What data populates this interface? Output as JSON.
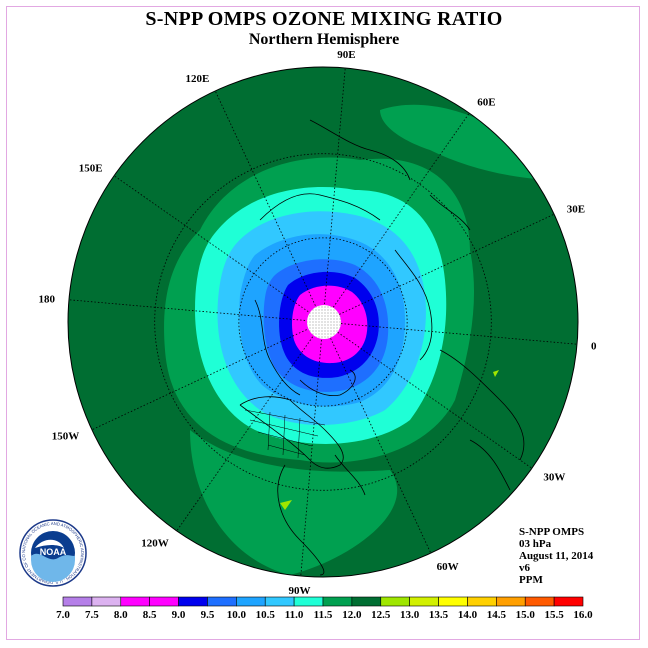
{
  "title": "S-NPP OMPS OZONE MIXING RATIO",
  "subtitle": "Northern Hemisphere",
  "longitude_labels": [
    "90E",
    "60E",
    "30E",
    "0",
    "30W",
    "60W",
    "90W",
    "120W",
    "150W",
    "180",
    "150E",
    "120E"
  ],
  "info": {
    "instrument": "S-NPP OMPS",
    "level": "03 hPa",
    "date": "August 11, 2014",
    "version": "v6",
    "units": "PPM"
  },
  "logo": {
    "text": "NOAA",
    "ring_text": "NATIONAL OCEANIC AND ATMOSPHERIC ADMINISTRATION · U.S. DEPARTMENT OF COMMERCE"
  },
  "colorbar": {
    "labels": [
      "7.0",
      "7.5",
      "8.0",
      "8.5",
      "9.0",
      "9.5",
      "10.0",
      "10.5",
      "11.0",
      "11.5",
      "12.0",
      "12.5",
      "13.0",
      "13.5",
      "14.0",
      "14.5",
      "15.0",
      "15.5",
      "16.0"
    ],
    "colors": [
      "#b57fe8",
      "#dcb2f0",
      "#ff00ff",
      "#ff00ff",
      "#0000ee",
      "#1e6fff",
      "#1ea4ff",
      "#31c8ff",
      "#1fffd6",
      "#00a050",
      "#006e32",
      "#9fe600",
      "#d2f000",
      "#ffff00",
      "#ffd000",
      "#ff9f00",
      "#ff5a00",
      "#ff0000",
      "#a0522d"
    ]
  },
  "map_colors": {
    "background": "#ffffff",
    "dark_green": "#006e32",
    "green": "#00a050",
    "cyan": "#1fffd6",
    "light_blue": "#31c8ff",
    "mid_blue": "#1ea4ff",
    "blue": "#1e6fff",
    "navy": "#0000ee",
    "magenta": "#ff00ff",
    "pole": "#ffffff",
    "lime_spot": "#9fe600"
  }
}
